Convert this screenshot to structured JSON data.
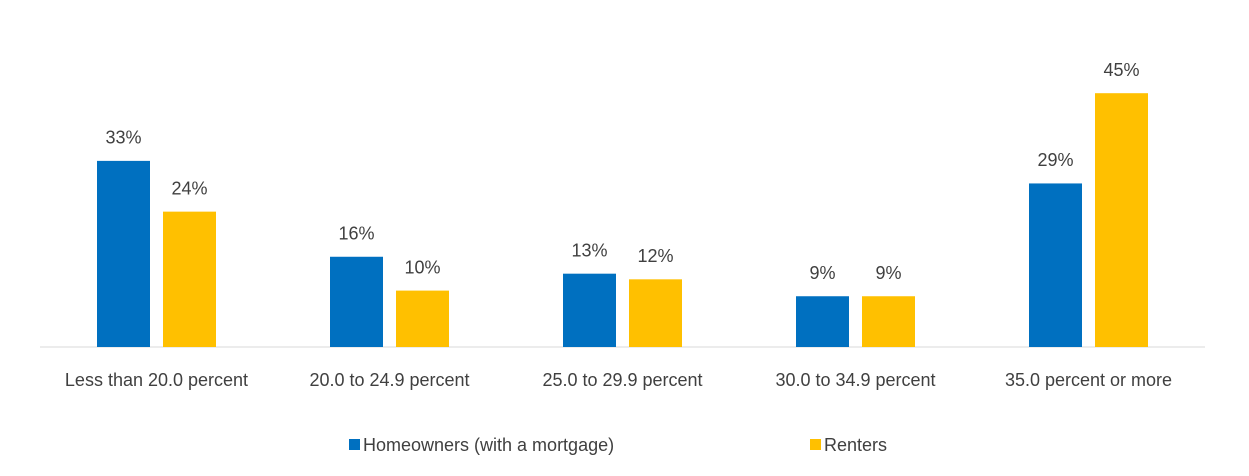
{
  "chart_data": {
    "type": "bar",
    "categories": [
      "Less than 20.0 percent",
      "20.0 to 24.9 percent",
      "25.0 to 29.9 percent",
      "30.0 to 34.9 percent",
      "35.0 percent or more"
    ],
    "series": [
      {
        "name": "Homeowners (with a mortgage)",
        "color": "#0070c0",
        "values": [
          33,
          16,
          13,
          9,
          29
        ],
        "value_labels": [
          "33%",
          "16%",
          "13%",
          "9%",
          "29%"
        ]
      },
      {
        "name": "Renters",
        "color": "#ffc000",
        "values": [
          24,
          10,
          12,
          9,
          45
        ],
        "value_labels": [
          "24%",
          "10%",
          "12%",
          "9%",
          "45%"
        ]
      }
    ],
    "legend": "bottom"
  }
}
